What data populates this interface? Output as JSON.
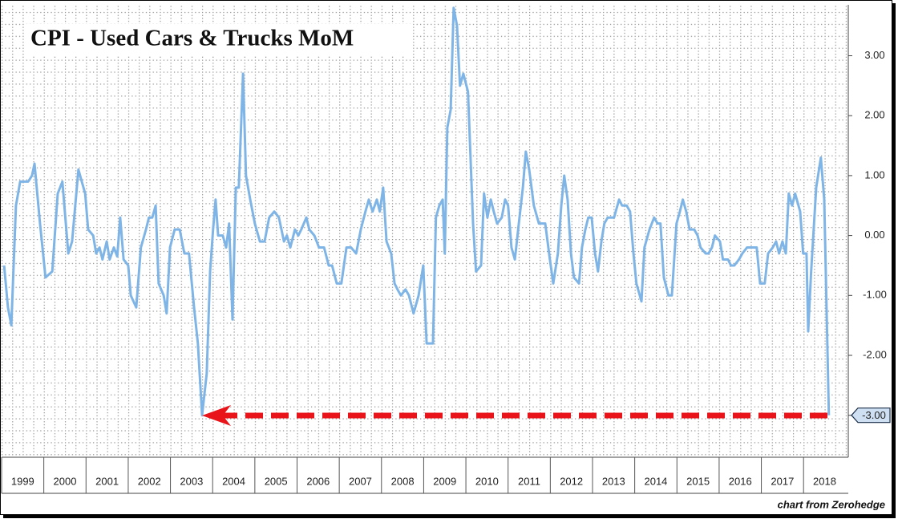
{
  "chart_data": {
    "type": "line",
    "title": "CPI - Used Cars & Trucks MoM",
    "credit": "chart from Zerohedge",
    "color": "#7fb5e6",
    "xlim": [
      1999,
      2019.06
    ],
    "xticks": [
      1999,
      2000,
      2001,
      2002,
      2003,
      2004,
      2005,
      2006,
      2007,
      2008,
      2009,
      2010,
      2011,
      2012,
      2013,
      2014,
      2015,
      2016,
      2017,
      2018
    ],
    "ylim": [
      -3.7,
      3.85
    ],
    "yticks": [
      {
        "value": -3,
        "label": "-3.00"
      },
      {
        "value": -2,
        "label": "-2.00"
      },
      {
        "value": -1,
        "label": "-1.00"
      },
      {
        "value": 0,
        "label": "0.00"
      },
      {
        "value": 1,
        "label": "1.00"
      },
      {
        "value": 2,
        "label": "2.00"
      },
      {
        "value": 3,
        "label": "3.00"
      }
    ],
    "x": [
      1999.06,
      1999.15,
      1999.23,
      1999.34,
      1999.44,
      1999.63,
      1999.72,
      1999.78,
      1999.91,
      2000.04,
      2000.2,
      2000.33,
      2000.44,
      2000.58,
      2000.67,
      2000.82,
      2000.98,
      2001.05,
      2001.17,
      2001.24,
      2001.32,
      2001.39,
      2001.49,
      2001.56,
      2001.66,
      2001.74,
      2001.81,
      2001.89,
      2002.0,
      2002.06,
      2002.19,
      2002.3,
      2002.42,
      2002.49,
      2002.57,
      2002.65,
      2002.72,
      2002.84,
      2002.91,
      2002.99,
      2003.1,
      2003.22,
      2003.33,
      2003.44,
      2003.56,
      2003.65,
      2003.75,
      2003.86,
      2003.94,
      2004.01,
      2004.07,
      2004.13,
      2004.24,
      2004.32,
      2004.39,
      2004.47,
      2004.55,
      2004.62,
      2004.72,
      2004.79,
      2004.89,
      2005.0,
      2005.12,
      2005.23,
      2005.34,
      2005.46,
      2005.57,
      2005.69,
      2005.76,
      2005.84,
      2005.95,
      2006.03,
      2006.1,
      2006.22,
      2006.29,
      2006.41,
      2006.52,
      2006.64,
      2006.75,
      2006.83,
      2006.94,
      2007.05,
      2007.17,
      2007.28,
      2007.4,
      2007.51,
      2007.62,
      2007.7,
      2007.79,
      2007.89,
      2007.96,
      2008.04,
      2008.12,
      2008.23,
      2008.31,
      2008.38,
      2008.46,
      2008.57,
      2008.65,
      2008.76,
      2008.88,
      2008.99,
      2009.07,
      2009.22,
      2009.29,
      2009.37,
      2009.45,
      2009.5,
      2009.56,
      2009.64,
      2009.71,
      2009.79,
      2009.86,
      2009.94,
      2010.05,
      2010.17,
      2010.24,
      2010.36,
      2010.43,
      2010.51,
      2010.59,
      2010.66,
      2010.74,
      2010.85,
      2010.93,
      2011.0,
      2011.08,
      2011.16,
      2011.27,
      2011.35,
      2011.42,
      2011.5,
      2011.61,
      2011.73,
      2011.8,
      2011.88,
      2011.99,
      2012.07,
      2012.18,
      2012.26,
      2012.33,
      2012.41,
      2012.49,
      2012.56,
      2012.68,
      2012.75,
      2012.83,
      2012.9,
      2012.98,
      2013.06,
      2013.13,
      2013.21,
      2013.28,
      2013.36,
      2013.51,
      2013.63,
      2013.7,
      2013.81,
      2013.89,
      2013.97,
      2014.04,
      2014.16,
      2014.23,
      2014.35,
      2014.46,
      2014.54,
      2014.61,
      2014.69,
      2014.8,
      2014.88,
      2014.99,
      2015.07,
      2015.14,
      2015.22,
      2015.3,
      2015.41,
      2015.49,
      2015.56,
      2015.68,
      2015.75,
      2015.83,
      2015.9,
      2016.02,
      2016.09,
      2016.21,
      2016.28,
      2016.36,
      2016.47,
      2016.55,
      2016.66,
      2016.78,
      2016.89,
      2016.97,
      2017.08,
      2017.16,
      2017.27,
      2017.35,
      2017.42,
      2017.5,
      2017.58,
      2017.65,
      2017.73,
      2017.8,
      2017.92,
      2017.99,
      2018.07,
      2018.11,
      2018.18,
      2018.3,
      2018.41,
      2018.49,
      2018.6
    ],
    "values": [
      -0.5,
      -1.2,
      -1.5,
      0.5,
      0.9,
      0.9,
      1.0,
      1.2,
      0.2,
      -0.7,
      -0.6,
      0.7,
      0.9,
      -0.3,
      -0.1,
      1.1,
      0.7,
      0.1,
      0.0,
      -0.3,
      -0.2,
      -0.4,
      -0.1,
      -0.4,
      -0.2,
      -0.35,
      0.3,
      -0.4,
      -0.5,
      -1.0,
      -1.2,
      -0.2,
      0.1,
      0.3,
      0.3,
      0.5,
      -0.8,
      -1.0,
      -1.3,
      -0.2,
      0.1,
      0.1,
      -0.3,
      -0.3,
      -1.2,
      -1.8,
      -3.0,
      -2.3,
      -0.6,
      0.1,
      0.6,
      0.0,
      0.0,
      -0.2,
      0.2,
      -1.4,
      0.8,
      0.8,
      2.7,
      1.0,
      0.6,
      0.2,
      -0.1,
      -0.1,
      0.3,
      0.4,
      0.3,
      -0.1,
      0.0,
      -0.2,
      0.1,
      0.0,
      0.1,
      0.3,
      0.1,
      0.0,
      -0.2,
      -0.2,
      -0.5,
      -0.5,
      -0.8,
      -0.8,
      -0.2,
      -0.2,
      -0.3,
      0.1,
      0.4,
      0.6,
      0.4,
      0.6,
      0.4,
      0.8,
      -0.1,
      -0.3,
      -0.8,
      -0.9,
      -1.0,
      -0.9,
      -1.0,
      -1.3,
      -1.0,
      -0.5,
      -1.8,
      -1.8,
      0.3,
      0.5,
      0.6,
      -0.3,
      1.8,
      2.1,
      3.8,
      3.5,
      2.5,
      2.7,
      2.4,
      0.2,
      -0.6,
      -0.5,
      0.7,
      0.3,
      0.6,
      0.4,
      0.2,
      0.3,
      0.6,
      0.5,
      -0.2,
      -0.4,
      0.3,
      0.8,
      1.4,
      1.1,
      0.5,
      0.2,
      0.2,
      0.2,
      -0.4,
      -0.8,
      -0.3,
      0.5,
      1.0,
      0.6,
      -0.3,
      -0.7,
      -0.8,
      -0.2,
      0.1,
      0.3,
      0.3,
      -0.3,
      -0.6,
      -0.1,
      0.2,
      0.3,
      0.3,
      0.6,
      0.5,
      0.5,
      0.4,
      -0.3,
      -0.8,
      -1.1,
      -0.2,
      0.1,
      0.3,
      0.2,
      0.2,
      -0.7,
      -1.0,
      -1.0,
      0.2,
      0.4,
      0.6,
      0.4,
      0.1,
      0.1,
      0.0,
      -0.2,
      -0.3,
      -0.3,
      -0.2,
      0.0,
      -0.1,
      -0.4,
      -0.4,
      -0.5,
      -0.5,
      -0.4,
      -0.3,
      -0.2,
      -0.2,
      -0.2,
      -0.8,
      -0.8,
      -0.3,
      -0.2,
      -0.1,
      -0.3,
      -0.1,
      -0.3,
      0.7,
      0.5,
      0.7,
      0.4,
      -0.3,
      -0.3,
      -1.6,
      -0.6,
      0.8,
      1.3,
      0.6,
      -3.0
    ]
  }
}
